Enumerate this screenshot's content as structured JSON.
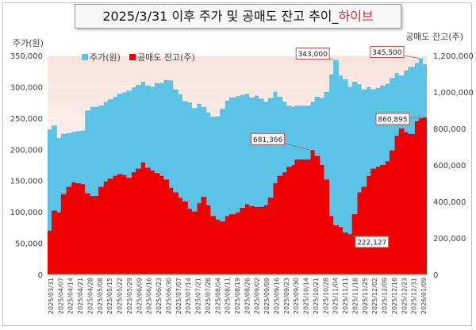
{
  "chart_data": {
    "type": "area",
    "title_prefix": "2025/3/31 이후 주가 및 공매도 잔고 추이_",
    "title_accent": "하이브",
    "y_left_label": "주가(원)",
    "y_right_label": "공매도 잔고(주)",
    "left_ticks": [
      "0",
      "50,000",
      "100,000",
      "150,000",
      "200,000",
      "250,000",
      "300,000",
      "350,000"
    ],
    "right_ticks": [
      "0",
      "200,000",
      "400,000",
      "600,000",
      "800,000",
      "1,000,000",
      "1,200,000"
    ],
    "ylim_left": [
      0,
      350000
    ],
    "ylim_right": [
      0,
      1200000
    ],
    "legend_position": "top-left",
    "legend": [
      {
        "name": "주가(원)",
        "color": "#5bc3e6"
      },
      {
        "name": "공매도 잔고(주)",
        "color": "#f00000"
      }
    ],
    "x_ticks": [
      "2025/03/31",
      "2025/04/07",
      "2025/04/14",
      "2025/04/21",
      "2025/04/28",
      "2025/05/08",
      "2025/05/15",
      "2025/05/22",
      "2025/05/29",
      "2025/06/09",
      "2025/06/16",
      "2025/06/23",
      "2025/06/30",
      "2025/07/07",
      "2025/07/14",
      "2025/07/21",
      "2025/07/28",
      "2025/08/04",
      "2025/08/11",
      "2025/08/19",
      "2025/08/26",
      "2025/09/02",
      "2025/09/09",
      "2025/09/16",
      "2025/09/23",
      "2025/09/30",
      "2025/10/14",
      "2025/10/21",
      "2025/10/28",
      "2025/11/04",
      "2025/11/11",
      "2025/11/18",
      "2025/11/25",
      "2025/12/02",
      "2025/12/09",
      "2025/12/16",
      "2025/12/23",
      "2025/12/31",
      "2026/01/09"
    ],
    "x_start": "2025-03-31",
    "x_end": "2026-01-09",
    "series": [
      {
        "name": "주가(원)",
        "axis": "left",
        "color": "#5bc3e6",
        "values": [
          [
            "2025-03-31",
            232000
          ],
          [
            "2025-04-03",
            238000
          ],
          [
            "2025-04-07",
            218000
          ],
          [
            "2025-04-10",
            225000
          ],
          [
            "2025-04-14",
            226000
          ],
          [
            "2025-04-18",
            228000
          ],
          [
            "2025-04-21",
            229000
          ],
          [
            "2025-04-25",
            230000
          ],
          [
            "2025-04-28",
            262000
          ],
          [
            "2025-05-02",
            268000
          ],
          [
            "2025-05-08",
            270000
          ],
          [
            "2025-05-12",
            276000
          ],
          [
            "2025-05-15",
            280000
          ],
          [
            "2025-05-19",
            284000
          ],
          [
            "2025-05-22",
            289000
          ],
          [
            "2025-05-26",
            291000
          ],
          [
            "2025-05-29",
            294000
          ],
          [
            "2025-06-02",
            299000
          ],
          [
            "2025-06-05",
            303000
          ],
          [
            "2025-06-09",
            308000
          ],
          [
            "2025-06-12",
            302000
          ],
          [
            "2025-06-16",
            300000
          ],
          [
            "2025-06-19",
            306000
          ],
          [
            "2025-06-23",
            306000
          ],
          [
            "2025-06-26",
            311000
          ],
          [
            "2025-06-30",
            310000
          ],
          [
            "2025-07-03",
            296000
          ],
          [
            "2025-07-07",
            288000
          ],
          [
            "2025-07-10",
            277000
          ],
          [
            "2025-07-14",
            275000
          ],
          [
            "2025-07-17",
            266000
          ],
          [
            "2025-07-21",
            273000
          ],
          [
            "2025-07-24",
            268000
          ],
          [
            "2025-07-28",
            259000
          ],
          [
            "2025-07-31",
            252000
          ],
          [
            "2025-08-04",
            253000
          ],
          [
            "2025-08-07",
            265000
          ],
          [
            "2025-08-11",
            278000
          ],
          [
            "2025-08-14",
            283000
          ],
          [
            "2025-08-19",
            285000
          ],
          [
            "2025-08-22",
            287000
          ],
          [
            "2025-08-26",
            289000
          ],
          [
            "2025-08-29",
            283000
          ],
          [
            "2025-09-02",
            286000
          ],
          [
            "2025-09-05",
            281000
          ],
          [
            "2025-09-09",
            276000
          ],
          [
            "2025-09-12",
            282000
          ],
          [
            "2025-09-16",
            292000
          ],
          [
            "2025-09-19",
            284000
          ],
          [
            "2025-09-23",
            276000
          ],
          [
            "2025-09-26",
            270000
          ],
          [
            "2025-09-30",
            268000
          ],
          [
            "2025-10-02",
            270000
          ],
          [
            "2025-10-14",
            276000
          ],
          [
            "2025-10-17",
            284000
          ],
          [
            "2025-10-21",
            282000
          ],
          [
            "2025-10-24",
            292000
          ],
          [
            "2025-10-28",
            320000
          ],
          [
            "2025-10-31",
            343000
          ],
          [
            "2025-11-04",
            318000
          ],
          [
            "2025-11-07",
            312000
          ],
          [
            "2025-11-11",
            300000
          ],
          [
            "2025-11-14",
            308000
          ],
          [
            "2025-11-18",
            304000
          ],
          [
            "2025-11-21",
            296000
          ],
          [
            "2025-11-25",
            300000
          ],
          [
            "2025-11-28",
            296000
          ],
          [
            "2025-12-02",
            298000
          ],
          [
            "2025-12-05",
            302000
          ],
          [
            "2025-12-09",
            305000
          ],
          [
            "2025-12-12",
            314000
          ],
          [
            "2025-12-16",
            322000
          ],
          [
            "2025-12-19",
            318000
          ],
          [
            "2025-12-23",
            326000
          ],
          [
            "2025-12-26",
            332000
          ],
          [
            "2025-12-31",
            338000
          ],
          [
            "2026-01-03",
            345500
          ],
          [
            "2026-01-06",
            336000
          ],
          [
            "2026-01-09",
            331000
          ]
        ]
      },
      {
        "name": "공매도 잔고(주)",
        "axis": "right",
        "color": "#f00000",
        "values": [
          [
            "2025-03-31",
            240000
          ],
          [
            "2025-04-03",
            350000
          ],
          [
            "2025-04-07",
            340000
          ],
          [
            "2025-04-10",
            440000
          ],
          [
            "2025-04-14",
            480000
          ],
          [
            "2025-04-18",
            505000
          ],
          [
            "2025-04-21",
            500000
          ],
          [
            "2025-04-25",
            495000
          ],
          [
            "2025-04-28",
            445000
          ],
          [
            "2025-05-02",
            430000
          ],
          [
            "2025-05-08",
            480000
          ],
          [
            "2025-05-12",
            510000
          ],
          [
            "2025-05-15",
            525000
          ],
          [
            "2025-05-19",
            540000
          ],
          [
            "2025-05-22",
            550000
          ],
          [
            "2025-05-26",
            545000
          ],
          [
            "2025-05-29",
            530000
          ],
          [
            "2025-06-02",
            560000
          ],
          [
            "2025-06-05",
            580000
          ],
          [
            "2025-06-09",
            615000
          ],
          [
            "2025-06-12",
            585000
          ],
          [
            "2025-06-16",
            570000
          ],
          [
            "2025-06-19",
            555000
          ],
          [
            "2025-06-23",
            540000
          ],
          [
            "2025-06-26",
            520000
          ],
          [
            "2025-06-30",
            475000
          ],
          [
            "2025-07-03",
            450000
          ],
          [
            "2025-07-07",
            420000
          ],
          [
            "2025-07-10",
            400000
          ],
          [
            "2025-07-14",
            360000
          ],
          [
            "2025-07-17",
            345000
          ],
          [
            "2025-07-21",
            390000
          ],
          [
            "2025-07-24",
            425000
          ],
          [
            "2025-07-28",
            380000
          ],
          [
            "2025-07-31",
            320000
          ],
          [
            "2025-08-04",
            300000
          ],
          [
            "2025-08-07",
            290000
          ],
          [
            "2025-08-11",
            320000
          ],
          [
            "2025-08-14",
            330000
          ],
          [
            "2025-08-19",
            340000
          ],
          [
            "2025-08-22",
            365000
          ],
          [
            "2025-08-26",
            385000
          ],
          [
            "2025-08-29",
            375000
          ],
          [
            "2025-09-02",
            370000
          ],
          [
            "2025-09-05",
            370000
          ],
          [
            "2025-09-09",
            380000
          ],
          [
            "2025-09-12",
            420000
          ],
          [
            "2025-09-16",
            500000
          ],
          [
            "2025-09-19",
            540000
          ],
          [
            "2025-09-23",
            560000
          ],
          [
            "2025-09-26",
            590000
          ],
          [
            "2025-09-30",
            600000
          ],
          [
            "2025-10-02",
            630000
          ],
          [
            "2025-10-14",
            681366
          ],
          [
            "2025-10-17",
            650000
          ],
          [
            "2025-10-21",
            600000
          ],
          [
            "2025-10-24",
            520000
          ],
          [
            "2025-10-28",
            320000
          ],
          [
            "2025-10-31",
            270000
          ],
          [
            "2025-11-04",
            260000
          ],
          [
            "2025-11-07",
            230000
          ],
          [
            "2025-11-11",
            222127
          ],
          [
            "2025-11-14",
            330000
          ],
          [
            "2025-11-18",
            450000
          ],
          [
            "2025-11-21",
            480000
          ],
          [
            "2025-11-25",
            540000
          ],
          [
            "2025-11-28",
            580000
          ],
          [
            "2025-12-02",
            590000
          ],
          [
            "2025-12-05",
            600000
          ],
          [
            "2025-12-09",
            620000
          ],
          [
            "2025-12-12",
            680000
          ],
          [
            "2025-12-16",
            760000
          ],
          [
            "2025-12-19",
            800000
          ],
          [
            "2025-12-23",
            780000
          ],
          [
            "2025-12-26",
            770000
          ],
          [
            "2025-12-31",
            840000
          ],
          [
            "2026-01-03",
            855000
          ],
          [
            "2026-01-06",
            860895
          ],
          [
            "2026-01-09",
            855000
          ]
        ]
      }
    ],
    "annotations": [
      {
        "text": "343,000",
        "date": "2025-10-31",
        "value": 343000,
        "axis": "left"
      },
      {
        "text": "345,500",
        "date": "2026-01-03",
        "value": 345500,
        "axis": "left"
      },
      {
        "text": "681,366",
        "date": "2025-10-14",
        "value": 681366,
        "axis": "right"
      },
      {
        "text": "222,127",
        "date": "2025-11-11",
        "value": 222127,
        "axis": "right"
      },
      {
        "text": "860,895",
        "date": "2026-01-06",
        "value": 860895,
        "axis": "right"
      }
    ],
    "grid": true
  }
}
